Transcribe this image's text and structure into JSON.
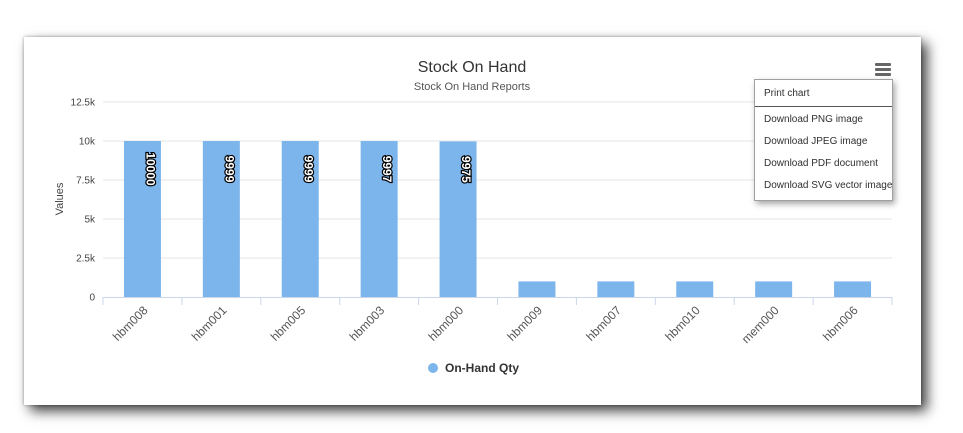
{
  "chart_data": {
    "type": "bar",
    "title": "Stock On Hand",
    "subtitle": "Stock On Hand Reports",
    "ylabel": "Values",
    "xlabel": "",
    "ylim": [
      0,
      12500
    ],
    "yticks": [
      0,
      2500,
      5000,
      7500,
      10000,
      12500
    ],
    "ytick_labels": [
      "0",
      "2.5k",
      "5k",
      "7.5k",
      "10k",
      "12.5k"
    ],
    "categories": [
      "hbm008",
      "hbm001",
      "hbm005",
      "hbm003",
      "hbm000",
      "hbm009",
      "hbm007",
      "hbm010",
      "mem000",
      "hbm006"
    ],
    "series": [
      {
        "name": "On-Hand Qty",
        "color": "#7cb5ec",
        "values": [
          10000,
          9999,
          9999,
          9997,
          9975,
          1000,
          1000,
          1000,
          1000,
          1000
        ],
        "data_labels": [
          "10000",
          "9999",
          "9999",
          "9997",
          "9975",
          null,
          null,
          null,
          null,
          null
        ]
      }
    ],
    "grid": true,
    "legend": "bottom-center"
  },
  "export_menu": {
    "icon": "hamburger-menu-icon",
    "items": [
      "Print chart",
      "Download PNG image",
      "Download JPEG image",
      "Download PDF document",
      "Download SVG vector image"
    ]
  }
}
